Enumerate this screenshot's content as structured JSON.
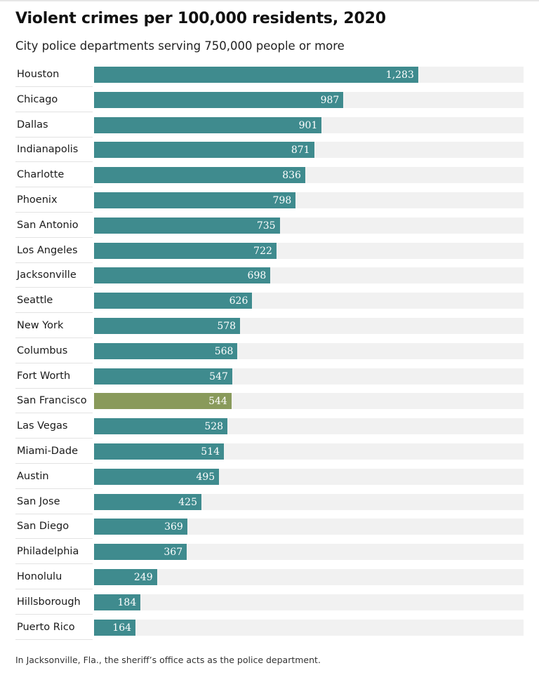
{
  "title": "Violent crimes per 100,000 residents, 2020",
  "subtitle": "City police departments serving 750,000 people or more",
  "note": "In Jacksonville, Fla., the sheriff’s office acts as the police department.",
  "colors": {
    "bar": "#3f8b8e",
    "highlight": "#899a5b",
    "track": "#f1f1f1"
  },
  "chart_data": {
    "type": "bar",
    "orientation": "horizontal",
    "title": "Violent crimes per 100,000 residents, 2020",
    "subtitle": "City police departments serving 750,000 people or more",
    "xlim": [
      0,
      1700
    ],
    "grid": false,
    "highlighted_category": "San Francisco",
    "categories": [
      "Houston",
      "Chicago",
      "Dallas",
      "Indianapolis",
      "Charlotte",
      "Phoenix",
      "San Antonio",
      "Los Angeles",
      "Jacksonville",
      "Seattle",
      "New York",
      "Columbus",
      "Fort Worth",
      "San Francisco",
      "Las Vegas",
      "Miami-Dade",
      "Austin",
      "San Jose",
      "San Diego",
      "Philadelphia",
      "Honolulu",
      "Hillsborough",
      "Puerto Rico"
    ],
    "values": [
      1283,
      987,
      901,
      871,
      836,
      798,
      735,
      722,
      698,
      626,
      578,
      568,
      547,
      544,
      528,
      514,
      495,
      425,
      369,
      367,
      249,
      184,
      164
    ],
    "value_labels": [
      "1,283",
      "987",
      "901",
      "871",
      "836",
      "798",
      "735",
      "722",
      "698",
      "626",
      "578",
      "568",
      "547",
      "544",
      "528",
      "514",
      "495",
      "425",
      "369",
      "367",
      "249",
      "184",
      "164"
    ]
  }
}
